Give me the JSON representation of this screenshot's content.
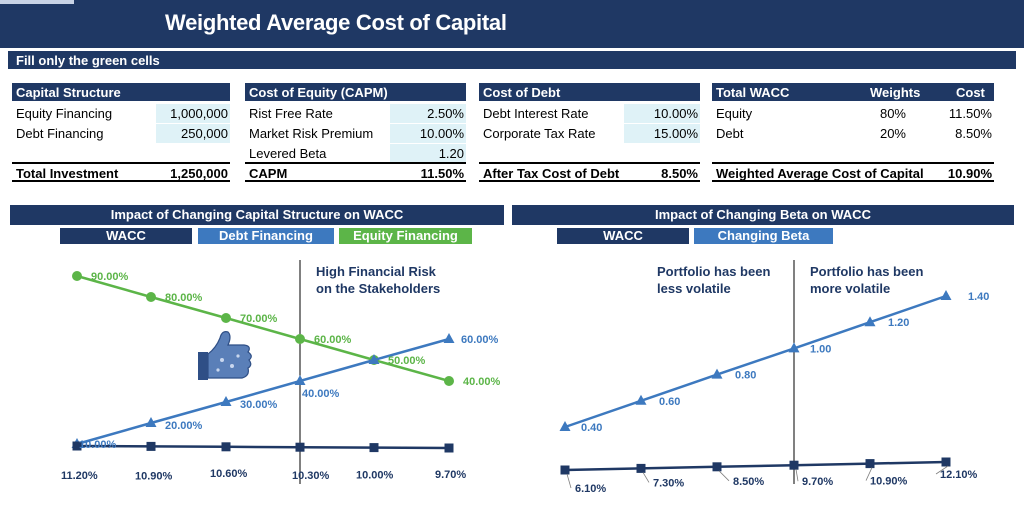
{
  "header": {
    "title": "Weighted Average Cost of Capital",
    "subtitle": "Fill only the green cells"
  },
  "capital_structure": {
    "header": "Capital Structure",
    "rows": [
      {
        "label": "Equity Financing",
        "value": "1,000,000"
      },
      {
        "label": "Debt Financing",
        "value": "250,000"
      }
    ],
    "total_label": "Total Investment",
    "total_value": "1,250,000"
  },
  "cost_of_equity": {
    "header": "Cost of Equity (CAPM)",
    "rows": [
      {
        "label": "Rist Free Rate",
        "value": "2.50%"
      },
      {
        "label": "Market Risk Premium",
        "value": "10.00%"
      },
      {
        "label": "Levered Beta",
        "value": "1.20"
      }
    ],
    "total_label": "CAPM",
    "total_value": "11.50%"
  },
  "cost_of_debt": {
    "header": "Cost of Debt",
    "rows": [
      {
        "label": "Debt Interest Rate",
        "value": "10.00%"
      },
      {
        "label": "Corporate Tax Rate",
        "value": "15.00%"
      }
    ],
    "total_label": "After Tax Cost of Debt",
    "total_value": "8.50%"
  },
  "total_wacc": {
    "header": "Total WACC",
    "col_weights": "Weights",
    "col_cost": "Cost",
    "rows": [
      {
        "label": "Equity",
        "weight": "80%",
        "cost": "11.50%"
      },
      {
        "label": "Debt",
        "weight": "20%",
        "cost": "8.50%"
      }
    ],
    "total_label": "Weighted Average Cost of Capital",
    "total_value": "10.90%"
  },
  "colors": {
    "navy": "#1f3864",
    "blue": "#3d79bf",
    "green": "#5cb548",
    "input_cell": "#dff2f7"
  },
  "chart_data": [
    {
      "type": "line",
      "title": "Impact of Changing Capital Structure on WACC",
      "legend": [
        "WACC",
        "Debt Financing",
        "Equity Financing"
      ],
      "annotation": "High Financial Risk on the Stakeholders",
      "annotation_lines": [
        "High Financial Risk",
        "on the Stakeholders"
      ],
      "icon": "thumbs-up-icon",
      "series": [
        {
          "name": "WACC",
          "values": [
            11.2,
            10.9,
            10.6,
            10.3,
            10.0,
            9.7
          ],
          "labels": [
            "11.20%",
            "10.90%",
            "10.60%",
            "10.30%",
            "10.00%",
            "9.70%"
          ]
        },
        {
          "name": "Debt Financing",
          "values": [
            10,
            20,
            30,
            40,
            50,
            60
          ],
          "labels": [
            "10.00%",
            "20.00%",
            "30.00%",
            "40.00%",
            "",
            "60.00%"
          ]
        },
        {
          "name": "Equity Financing",
          "values": [
            90,
            80,
            70,
            60,
            50,
            40
          ],
          "labels": [
            "90.00%",
            "80.00%",
            "70.00%",
            "60.00%",
            "50.00%",
            "40.00%"
          ]
        }
      ]
    },
    {
      "type": "line",
      "title": "Impact of Changing Beta on WACC",
      "legend": [
        "WACC",
        "Changing Beta"
      ],
      "annotation_left_lines": [
        "Portfolio has been",
        "less volatile"
      ],
      "annotation_right_lines": [
        "Portfolio has been",
        "more volatile"
      ],
      "series": [
        {
          "name": "WACC",
          "values": [
            6.1,
            7.3,
            8.5,
            9.7,
            10.9,
            12.1
          ],
          "labels": [
            "6.10%",
            "7.30%",
            "8.50%",
            "9.70%",
            "10.90%",
            "12.10%"
          ]
        },
        {
          "name": "Changing Beta",
          "values": [
            0.4,
            0.6,
            0.8,
            1.0,
            1.2,
            1.4
          ],
          "labels": [
            "0.40",
            "0.60",
            "0.80",
            "1.00",
            "1.20",
            "1.40"
          ]
        }
      ]
    }
  ]
}
